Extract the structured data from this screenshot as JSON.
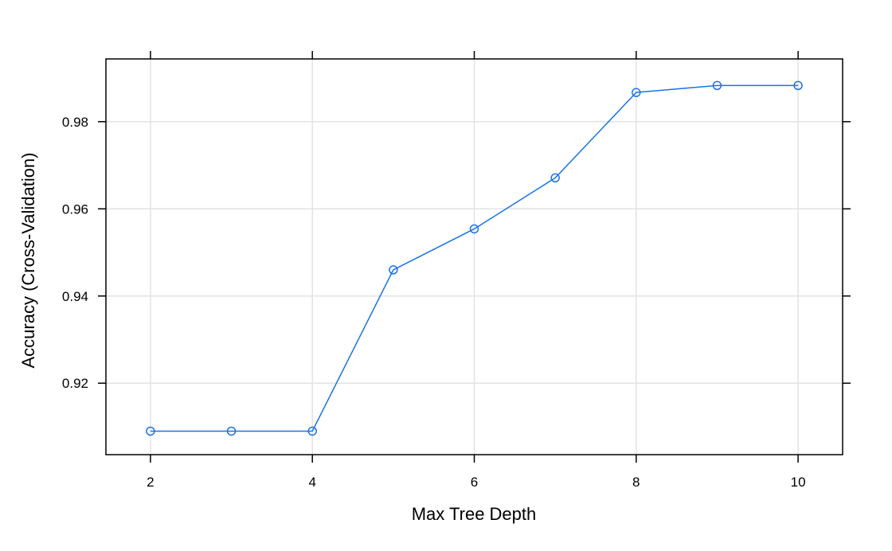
{
  "chart_data": {
    "type": "line",
    "title": "",
    "xlabel": "Max Tree Depth",
    "ylabel": "Accuracy (Cross-Validation)",
    "x": [
      2,
      3,
      4,
      5,
      6,
      7,
      8,
      9,
      10
    ],
    "series": [
      {
        "values": [
          0.909,
          0.909,
          0.909,
          0.946,
          0.9554,
          0.9671,
          0.9867,
          0.9883,
          0.9883
        ]
      }
    ],
    "x_ticks": [
      2,
      4,
      6,
      8,
      10
    ],
    "x_tick_labels": [
      "2",
      "4",
      "6",
      "8",
      "10"
    ],
    "y_ticks": [
      0.92,
      0.94,
      0.96,
      0.98
    ],
    "y_tick_labels": [
      "0.92",
      "0.94",
      "0.96",
      "0.98"
    ],
    "xlim": [
      1.45,
      10.55
    ],
    "ylim": [
      0.9036,
      0.9944
    ],
    "grid": true,
    "marker": "open-circle",
    "colors": {
      "series": "#1a73e8",
      "grid": "#e3e3e3",
      "axis": "#000000"
    }
  }
}
